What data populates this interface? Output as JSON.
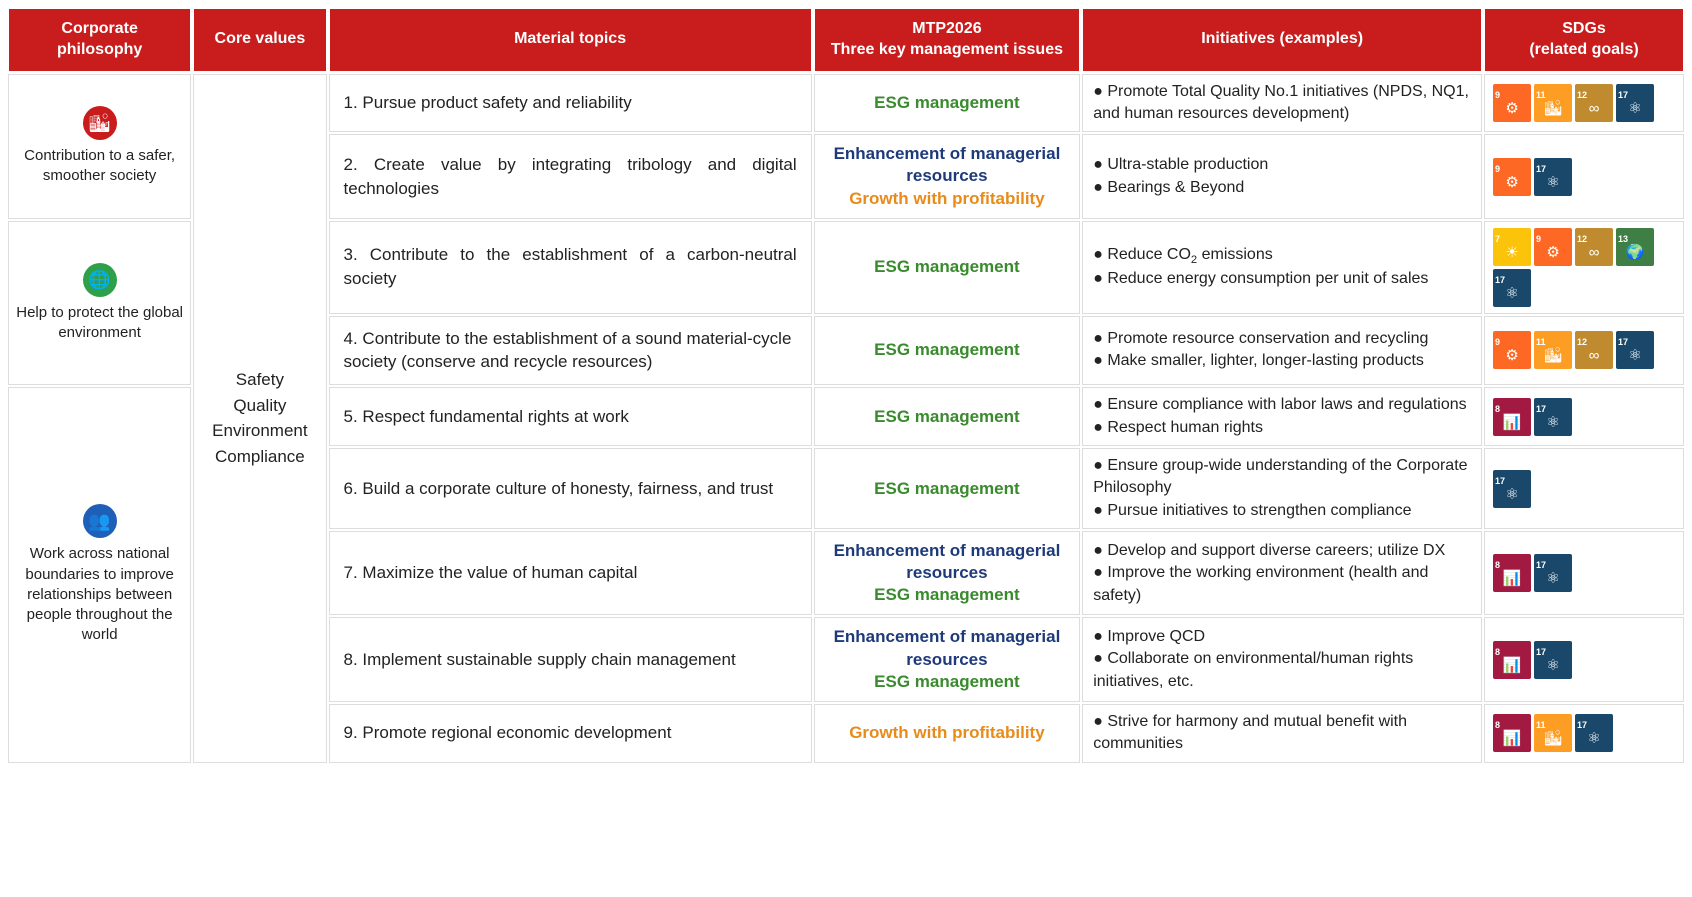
{
  "colors": {
    "header_bg": "#c91c1c",
    "header_text": "#ffffff",
    "esg": "#3a8a2e",
    "enhance": "#1e3a7b",
    "growth": "#e88b1a",
    "border": "#dddddd",
    "text": "#222222",
    "icon_city": "#c91c1c",
    "icon_globe": "#2fa04a",
    "icon_people": "#1e5fb8"
  },
  "sdg_colors": {
    "7": "#fcc30b",
    "8": "#a21942",
    "9": "#fd6925",
    "11": "#fd9d24",
    "12": "#bf8b2e",
    "13": "#3f7e44",
    "17": "#19486a"
  },
  "sdg_symbols": {
    "7": "☀",
    "8": "📊",
    "9": "⚙",
    "11": "🏙",
    "12": "∞",
    "13": "🌍",
    "17": "⚛"
  },
  "headers": {
    "philosophy": "Corporate philosophy",
    "core_values": "Core values",
    "material": "Material topics",
    "mtp": "MTP2026\nThree key management issues",
    "initiatives": "Initiatives (examples)",
    "sdgs": "SDGs\n(related goals)"
  },
  "col_widths": [
    "11%",
    "8%",
    "29%",
    "16%",
    "24%",
    "12%"
  ],
  "core_values": "Safety\nQuality\nEnvironment\nCompliance",
  "philosophies": [
    {
      "icon": "🏙",
      "icon_color": "icon_city",
      "label": "Contribution to a safer, smoother society",
      "rowspan": 2
    },
    {
      "icon": "🌐",
      "icon_color": "icon_globe",
      "label": "Help to protect the global environment",
      "rowspan": 2
    },
    {
      "icon": "👥",
      "icon_color": "icon_people",
      "label": "Work across national boundaries to improve relationships between people throughout the world",
      "rowspan": 5
    }
  ],
  "mtp_labels": {
    "esg": "ESG management",
    "enhance": "Enhancement of managerial resources",
    "growth": "Growth with profitability"
  },
  "rows": [
    {
      "material": "1. Pursue product safety and reliability",
      "justify": false,
      "mtp": [
        "esg"
      ],
      "initiatives": [
        "● Promote Total Quality No.1 initiatives (NPDS, NQ1, and human resources development)"
      ],
      "sdgs": [
        9,
        11,
        12,
        17
      ]
    },
    {
      "material": "2.  Create value by integrating tribology and digital technologies",
      "justify": true,
      "mtp": [
        "enhance",
        "growth"
      ],
      "initiatives": [
        "● Ultra-stable production",
        "● Bearings & Beyond"
      ],
      "sdgs": [
        9,
        17
      ]
    },
    {
      "material": "3.  Contribute to the establishment of a carbon-neutral society",
      "justify": true,
      "mtp": [
        "esg"
      ],
      "initiatives_html": "● Reduce CO<sub>2</sub> emissions<br>● Reduce energy consumption per unit of sales",
      "sdgs": [
        7,
        9,
        12,
        13,
        17
      ]
    },
    {
      "material": "4.  Contribute to the establishment of a sound material-cycle society (conserve and recycle resources)",
      "justify": false,
      "mtp": [
        "esg"
      ],
      "initiatives": [
        "● Promote resource conservation and recycling",
        "● Make smaller, lighter, longer-lasting products"
      ],
      "sdgs": [
        9,
        11,
        12,
        17
      ]
    },
    {
      "material": "5.  Respect fundamental rights at work",
      "justify": false,
      "mtp": [
        "esg"
      ],
      "initiatives": [
        "● Ensure compliance with labor laws and regulations",
        "● Respect human rights"
      ],
      "sdgs": [
        8,
        17
      ]
    },
    {
      "material": "6.  Build a corporate culture of honesty, fairness, and trust",
      "justify": false,
      "mtp": [
        "esg"
      ],
      "initiatives": [
        "● Ensure group-wide understanding of the Corporate Philosophy",
        "● Pursue initiatives to strengthen compliance"
      ],
      "sdgs": [
        17
      ]
    },
    {
      "material": "7.  Maximize the value of human capital",
      "justify": false,
      "mtp": [
        "enhance",
        "esg"
      ],
      "initiatives": [
        "● Develop and support diverse careers; utilize DX",
        "● Improve the working environment (health and safety)"
      ],
      "sdgs": [
        8,
        17
      ]
    },
    {
      "material": "8.  Implement sustainable supply chain management",
      "justify": false,
      "mtp": [
        "enhance",
        "esg"
      ],
      "initiatives": [
        "● Improve QCD",
        "● Collaborate on environmental/human rights initiatives, etc."
      ],
      "sdgs": [
        8,
        17
      ]
    },
    {
      "material": "9.  Promote regional economic development",
      "justify": false,
      "mtp": [
        "growth"
      ],
      "initiatives": [
        "● Strive for harmony and mutual benefit with communities"
      ],
      "sdgs": [
        8,
        11,
        17
      ]
    }
  ]
}
